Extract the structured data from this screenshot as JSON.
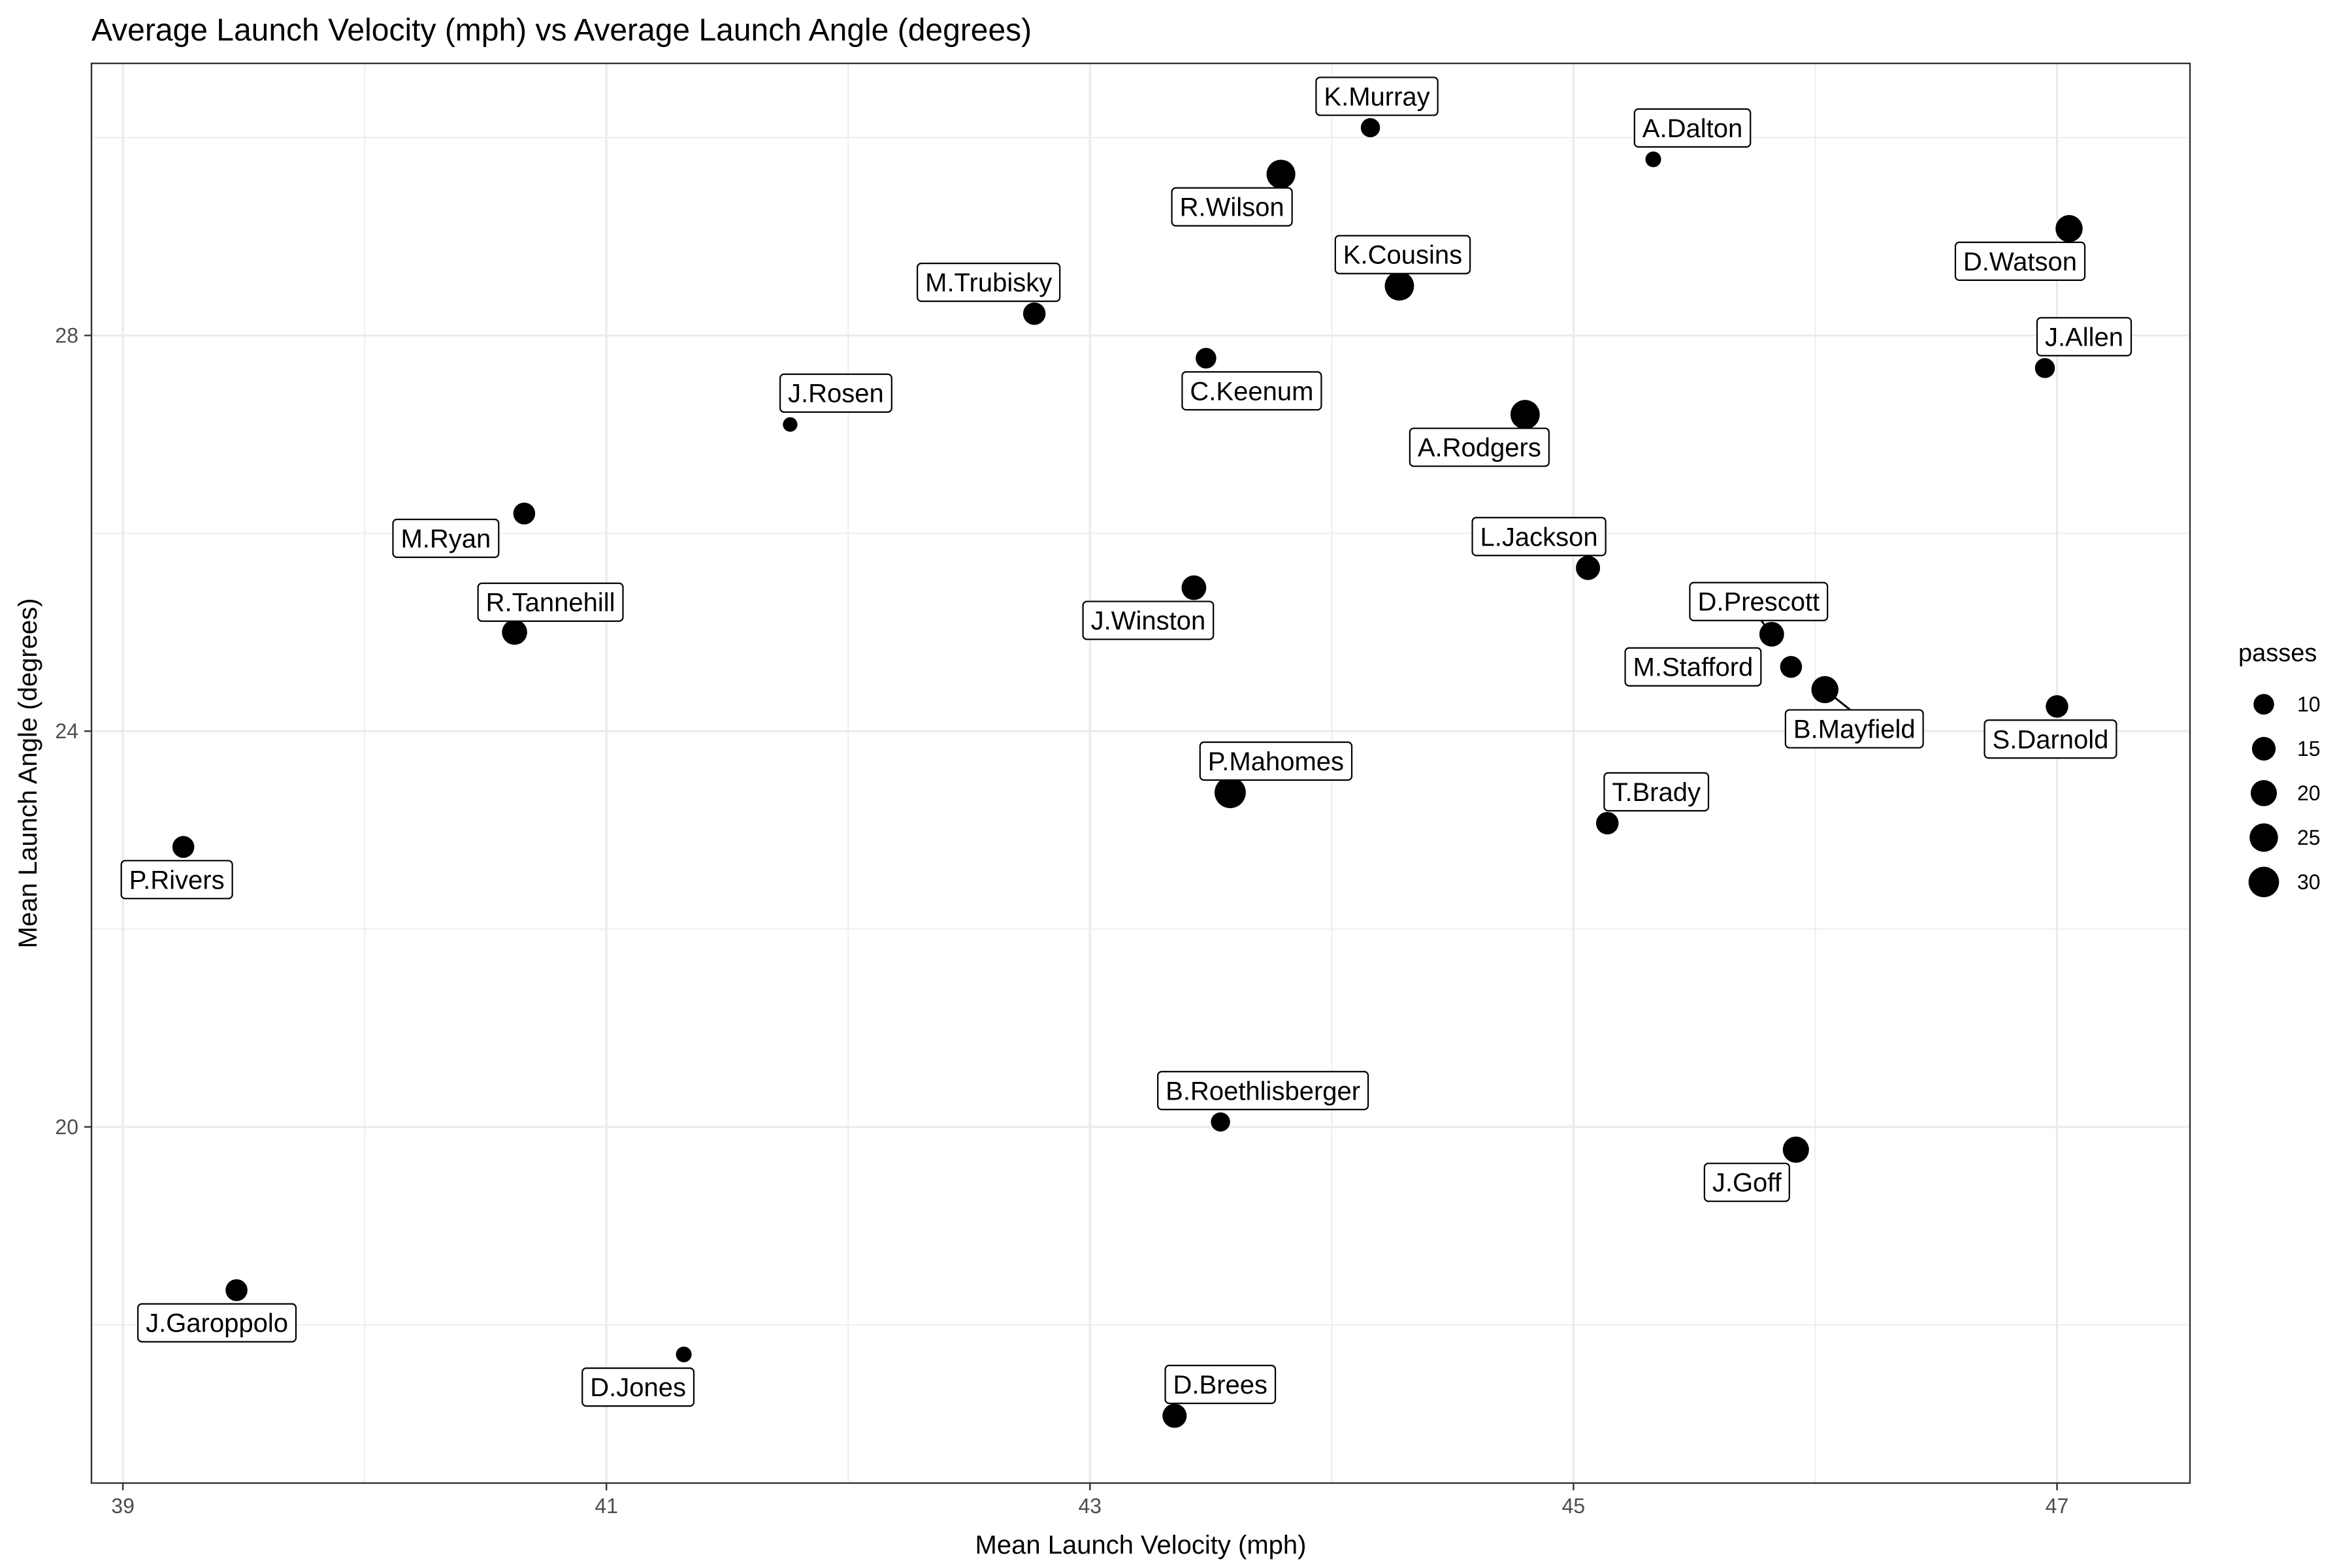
{
  "chart_data": {
    "type": "scatter",
    "title": "Average Launch Velocity (mph) vs Average Launch Angle (degrees)",
    "xlabel": "Mean Launch Velocity (mph)",
    "ylabel": "Mean Launch Angle (degrees)",
    "xlim": [
      38.87,
      47.55
    ],
    "ylim": [
      16.4,
      30.75
    ],
    "x_ticks": [
      39,
      41,
      43,
      45,
      47
    ],
    "y_ticks": [
      20,
      24,
      28
    ],
    "grid": true,
    "legend": {
      "title": "passes",
      "position": "right",
      "sizes": [
        10,
        15,
        20,
        25,
        30
      ]
    },
    "points": [
      {
        "name": "K.Murray",
        "x": 44.16,
        "y": 30.1,
        "passes": 8
      },
      {
        "name": "A.Dalton",
        "x": 45.33,
        "y": 29.78,
        "passes": 4
      },
      {
        "name": "R.Wilson",
        "x": 43.79,
        "y": 29.63,
        "passes": 26
      },
      {
        "name": "D.Watson",
        "x": 47.05,
        "y": 29.08,
        "passes": 22
      },
      {
        "name": "K.Cousins",
        "x": 44.28,
        "y": 28.5,
        "passes": 27
      },
      {
        "name": "M.Trubisky",
        "x": 42.77,
        "y": 28.22,
        "passes": 13
      },
      {
        "name": "C.Keenum",
        "x": 43.48,
        "y": 27.77,
        "passes": 10
      },
      {
        "name": "J.Allen",
        "x": 46.95,
        "y": 27.67,
        "passes": 9
      },
      {
        "name": "A.Rodgers",
        "x": 44.8,
        "y": 27.2,
        "passes": 27
      },
      {
        "name": "J.Rosen",
        "x": 41.76,
        "y": 27.1,
        "passes": 3
      },
      {
        "name": "M.Ryan",
        "x": 40.66,
        "y": 26.2,
        "passes": 12
      },
      {
        "name": "L.Jackson",
        "x": 45.06,
        "y": 25.65,
        "passes": 16
      },
      {
        "name": "J.Winston",
        "x": 43.43,
        "y": 25.45,
        "passes": 17
      },
      {
        "name": "R.Tannehill",
        "x": 40.62,
        "y": 25.0,
        "passes": 18
      },
      {
        "name": "D.Prescott",
        "x": 45.82,
        "y": 24.98,
        "passes": 17
      },
      {
        "name": "M.Stafford",
        "x": 45.9,
        "y": 24.65,
        "passes": 12
      },
      {
        "name": "B.Mayfield",
        "x": 46.04,
        "y": 24.42,
        "passes": 22
      },
      {
        "name": "S.Darnold",
        "x": 47.0,
        "y": 24.25,
        "passes": 13
      },
      {
        "name": "P.Mahomes",
        "x": 43.58,
        "y": 23.38,
        "passes": 32
      },
      {
        "name": "T.Brady",
        "x": 45.14,
        "y": 23.07,
        "passes": 13
      },
      {
        "name": "P.Rivers",
        "x": 39.25,
        "y": 22.83,
        "passes": 12
      },
      {
        "name": "B.Roethlisberger",
        "x": 43.54,
        "y": 20.05,
        "passes": 8
      },
      {
        "name": "J.Goff",
        "x": 45.92,
        "y": 19.77,
        "passes": 20
      },
      {
        "name": "J.Garoppolo",
        "x": 39.47,
        "y": 18.35,
        "passes": 12
      },
      {
        "name": "D.Jones",
        "x": 41.32,
        "y": 17.7,
        "passes": 4
      },
      {
        "name": "D.Brees",
        "x": 43.35,
        "y": 17.08,
        "passes": 16
      }
    ]
  }
}
